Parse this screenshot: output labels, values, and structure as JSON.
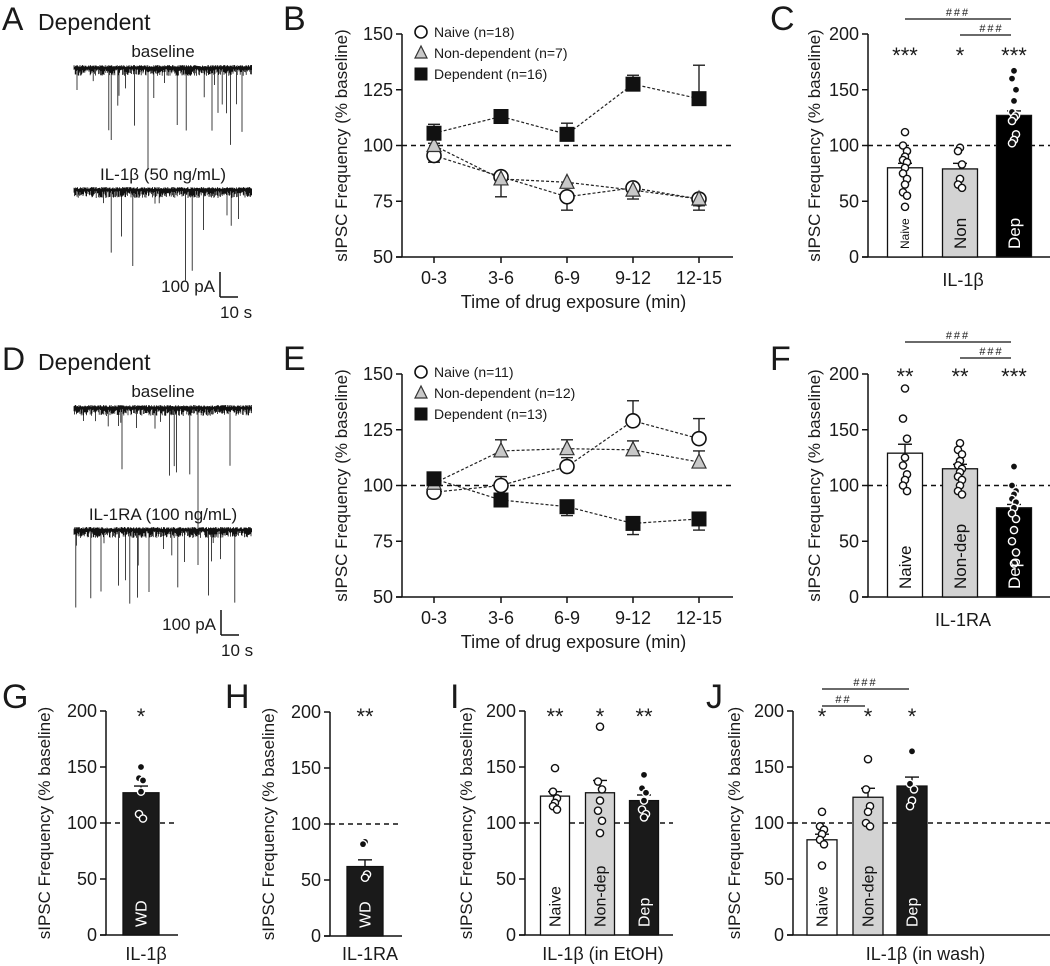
{
  "traces": [
    {
      "panel": "A",
      "title": "Dependent",
      "top_label": "baseline",
      "bottom_label": "IL-1β (50 ng/mL)",
      "scale_y": "100 pA",
      "scale_x": "10 s"
    },
    {
      "panel": "D",
      "title": "Dependent",
      "top_label": "baseline",
      "bottom_label": "IL-1RA (100 ng/mL)",
      "scale_y": "100 pA",
      "scale_x": "10 s"
    }
  ],
  "chart_data": [
    {
      "panel": "B",
      "type": "line",
      "xlabel": "Time of drug exposure (min)",
      "ylabel": "sIPSC Frequency (% baseline)",
      "ylim": [
        50,
        150
      ],
      "yticks": [
        50,
        75,
        100,
        125,
        150
      ],
      "reference_line": 100,
      "categories": [
        "0-3",
        "3-6",
        "6-9",
        "9-12",
        "12-15"
      ],
      "series": [
        {
          "name": "Naive (n=18)",
          "marker": "circle",
          "fill": "#ffffff",
          "values": [
            95.5,
            86,
            77,
            81,
            76
          ],
          "errors": [
            3,
            1,
            6,
            1.5,
            5
          ]
        },
        {
          "name": "Non-dependent (n=7)",
          "marker": "triangle",
          "fill": "#c8c8c8",
          "values": [
            100,
            85,
            83.5,
            80,
            76
          ],
          "errors": [
            1,
            8,
            1,
            4,
            3
          ]
        },
        {
          "name": "Dependent (n=16)",
          "marker": "square",
          "fill": "#111111",
          "values": [
            105.5,
            113,
            105,
            127.5,
            121
          ],
          "errors": [
            4,
            1,
            5,
            4,
            15
          ]
        }
      ]
    },
    {
      "panel": "C",
      "type": "bar",
      "xlabel": "IL-1β",
      "ylabel": "sIPSC Frequency (% baseline)",
      "ylim": [
        0,
        200
      ],
      "yticks": [
        0,
        50,
        100,
        150,
        200
      ],
      "reference_line": 100,
      "bars": [
        {
          "label": "Naive",
          "value": 80,
          "error": 4,
          "color": "#ffffff",
          "sig": "***",
          "points": [
            112,
            100,
            95,
            90,
            87,
            85,
            80,
            75,
            70,
            65,
            58,
            55,
            45
          ]
        },
        {
          "label": "Non",
          "value": 79,
          "error": 5,
          "color": "#d3d3d3",
          "sig": "*",
          "points": [
            98,
            95,
            83,
            70,
            65,
            62
          ]
        },
        {
          "label": "Dep",
          "value": 127,
          "error": 4,
          "color": "#000000",
          "sig": "***",
          "points": [
            167,
            160,
            150,
            140,
            130,
            127,
            125,
            122,
            110,
            105,
            102
          ]
        }
      ],
      "brackets": [
        {
          "from": 0,
          "to": 2,
          "label": "###"
        },
        {
          "from": 1,
          "to": 2,
          "label": "###"
        }
      ]
    },
    {
      "panel": "E",
      "type": "line",
      "xlabel": "Time of drug exposure (min)",
      "ylabel": "sIPSC Frequency (% baseline)",
      "ylim": [
        50,
        150
      ],
      "yticks": [
        50,
        75,
        100,
        125,
        150
      ],
      "reference_line": 100,
      "categories": [
        "0-3",
        "3-6",
        "6-9",
        "9-12",
        "12-15"
      ],
      "series": [
        {
          "name": "Naive (n=11)",
          "marker": "circle",
          "fill": "#ffffff",
          "values": [
            97,
            100,
            108.5,
            129,
            121
          ],
          "errors": [
            1,
            4,
            4,
            9,
            9
          ]
        },
        {
          "name": "Non-dependent (n=12)",
          "marker": "triangle",
          "fill": "#c8c8c8",
          "values": [
            101,
            115.5,
            116.5,
            116,
            110.5
          ],
          "errors": [
            1,
            5,
            4,
            4,
            5
          ]
        },
        {
          "name": "Dependent (n=13)",
          "marker": "square",
          "fill": "#111111",
          "values": [
            103,
            93.5,
            90.5,
            83,
            85
          ],
          "errors": [
            1,
            3,
            4,
            5,
            5
          ]
        }
      ]
    },
    {
      "panel": "F",
      "type": "bar",
      "xlabel": "IL-1RA",
      "ylabel": "sIPSC Frequency (% baseline)",
      "ylim": [
        0,
        200
      ],
      "yticks": [
        0,
        50,
        100,
        150,
        200
      ],
      "reference_line": 100,
      "bars": [
        {
          "label": "Naive",
          "value": 129,
          "error": 8,
          "color": "#ffffff",
          "sig": "**",
          "points": [
            187,
            160,
            142,
            125,
            118,
            110,
            105,
            100,
            95
          ]
        },
        {
          "label": "Non-dep",
          "value": 115,
          "error": 4,
          "color": "#d3d3d3",
          "sig": "**",
          "points": [
            138,
            132,
            128,
            122,
            118,
            115,
            112,
            108,
            105,
            100,
            95,
            92
          ]
        },
        {
          "label": "Dep",
          "value": 80,
          "error": 3,
          "color": "#000000",
          "sig": "***",
          "points": [
            117,
            100,
            95,
            92,
            88,
            85,
            80,
            75,
            70,
            60,
            50,
            40,
            30
          ]
        }
      ],
      "brackets": [
        {
          "from": 0,
          "to": 2,
          "label": "###"
        },
        {
          "from": 1,
          "to": 2,
          "label": "###"
        }
      ]
    },
    {
      "panel": "G",
      "type": "bar",
      "xlabel": "IL-1β",
      "ylabel": "sIPSC Frequency (% baseline)",
      "ylim": [
        0,
        200
      ],
      "yticks": [
        0,
        50,
        100,
        150,
        200
      ],
      "reference_line": 100,
      "bars": [
        {
          "label": "WD",
          "value": 127,
          "error": 6,
          "color": "#1a1a1a",
          "sig": "*",
          "points": [
            150,
            140,
            138,
            128,
            108,
            104
          ]
        }
      ]
    },
    {
      "panel": "H",
      "type": "bar",
      "xlabel": "IL-1RA",
      "ylabel": "sIPSC Frequency (% baseline)",
      "ylim": [
        0,
        200
      ],
      "yticks": [
        0,
        50,
        100,
        150,
        200
      ],
      "reference_line": 100,
      "bars": [
        {
          "label": "WD",
          "value": 62,
          "error": 6,
          "color": "#1a1a1a",
          "sig": "**",
          "points": [
            84,
            82,
            55,
            52
          ]
        }
      ]
    },
    {
      "panel": "I",
      "type": "bar",
      "xlabel": "IL-1β (in EtOH)",
      "ylabel": "sIPSC Frequency (% baseline)",
      "ylim": [
        0,
        200
      ],
      "yticks": [
        0,
        50,
        100,
        150,
        200
      ],
      "reference_line": 100,
      "bars": [
        {
          "label": "Naive",
          "value": 124,
          "error": 4,
          "color": "#ffffff",
          "sig": "**",
          "points": [
            149,
            128,
            122,
            118,
            115,
            112
          ]
        },
        {
          "label": "Non-dep",
          "value": 127,
          "error": 11,
          "color": "#d3d3d3",
          "sig": "*",
          "points": [
            186,
            137,
            130,
            120,
            111,
            102,
            91
          ]
        },
        {
          "label": "Dep",
          "value": 120,
          "error": 5,
          "color": "#1a1a1a",
          "sig": "**",
          "points": [
            143,
            131,
            127,
            120,
            112,
            108,
            105
          ]
        }
      ]
    },
    {
      "panel": "J",
      "type": "bar",
      "xlabel": "IL-1β (in wash)",
      "ylabel": "sIPSC Frequency (% baseline)",
      "ylim": [
        0,
        200
      ],
      "yticks": [
        0,
        50,
        100,
        150,
        200
      ],
      "reference_line": 100,
      "bars": [
        {
          "label": "Naive",
          "value": 85,
          "error": 5,
          "color": "#ffffff",
          "sig": "*",
          "points": [
            110,
            97,
            94,
            90,
            85,
            81,
            62
          ]
        },
        {
          "label": "Non-dep",
          "value": 123,
          "error": 8,
          "color": "#d3d3d3",
          "sig": "*",
          "points": [
            157,
            130,
            115,
            110,
            100,
            97
          ]
        },
        {
          "label": "Dep",
          "value": 133,
          "error": 8,
          "color": "#1a1a1a",
          "sig": "*",
          "points": [
            164,
            135,
            130,
            120,
            115
          ]
        }
      ],
      "brackets": [
        {
          "from": 0,
          "to": 2,
          "label": "###"
        },
        {
          "from": 0,
          "to": 1,
          "label": "##"
        }
      ]
    }
  ]
}
